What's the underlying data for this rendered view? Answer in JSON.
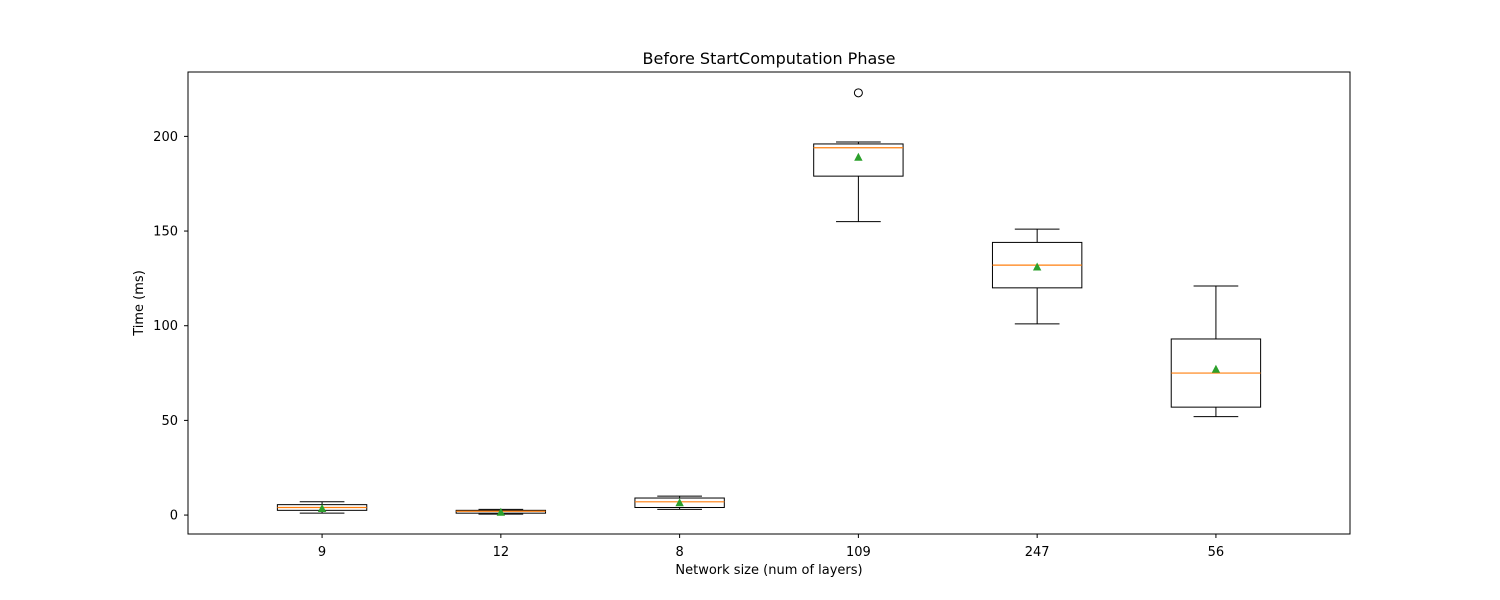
{
  "chart_data": {
    "type": "boxplot",
    "title": "Before StartComputation Phase",
    "xlabel": "Network size (num of layers)",
    "ylabel": "Time (ms)",
    "ylim": [
      -10,
      234
    ],
    "yticks": [
      0,
      50,
      100,
      150,
      200
    ],
    "grid": false,
    "categories": [
      "9",
      "12",
      "8",
      "109",
      "247",
      "56"
    ],
    "boxes": [
      {
        "whisker_low": 1,
        "q1": 2.5,
        "median": 4,
        "q3": 5.5,
        "whisker_high": 7,
        "mean": 3.5,
        "outliers": []
      },
      {
        "whisker_low": 0.5,
        "q1": 1,
        "median": 2,
        "q3": 2.5,
        "whisker_high": 3,
        "mean": 1.5,
        "outliers": []
      },
      {
        "whisker_low": 3,
        "q1": 4,
        "median": 7,
        "q3": 9,
        "whisker_high": 10,
        "mean": 6.5,
        "outliers": []
      },
      {
        "whisker_low": 155,
        "q1": 179,
        "median": 194,
        "q3": 196,
        "whisker_high": 197,
        "mean": 189,
        "outliers": [
          223
        ]
      },
      {
        "whisker_low": 101,
        "q1": 120,
        "median": 132,
        "q3": 144,
        "whisker_high": 151,
        "mean": 131,
        "outliers": []
      },
      {
        "whisker_low": 52,
        "q1": 57,
        "median": 75,
        "q3": 93,
        "whisker_high": 121,
        "mean": 77,
        "outliers": []
      }
    ],
    "colors": {
      "box": "#000000",
      "median": "#ff7f0e",
      "mean": "#2ca02c",
      "outlier": "#000000"
    }
  }
}
